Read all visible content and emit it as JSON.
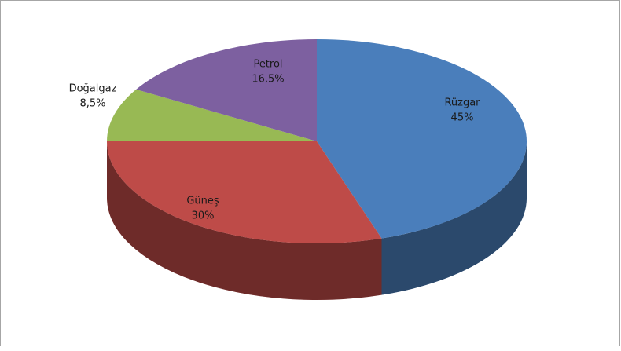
{
  "chart_data": {
    "type": "pie",
    "categories": [
      "Rüzgar",
      "Güneş",
      "Doğalgaz",
      "Petrol"
    ],
    "values": [
      45,
      30,
      8.5,
      16.5
    ],
    "value_labels": [
      "45%",
      "30%",
      "8,5%",
      "16,5%"
    ],
    "colors": [
      "#4a7ebb",
      "#be4b48",
      "#98b954",
      "#7d60a0"
    ]
  }
}
